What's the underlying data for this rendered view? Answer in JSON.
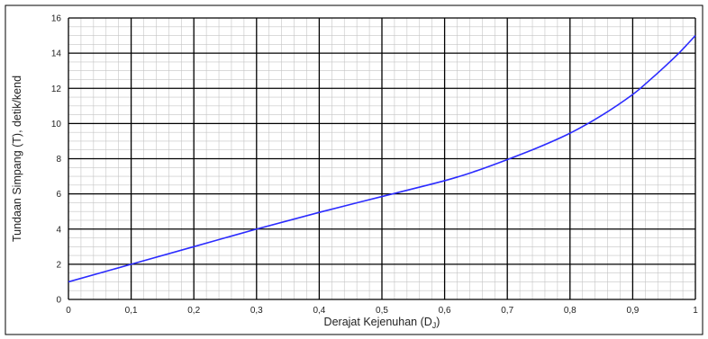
{
  "chart_data": {
    "type": "line",
    "title": "",
    "xlabel": "Derajat Kejenuhan (D",
    "xlabel_subscript": "J",
    "xlabel_suffix": ")",
    "ylabel": "Tundaan Simpang (T), detik/kend",
    "xlim": [
      0,
      1
    ],
    "ylim": [
      0,
      16
    ],
    "x_ticks": [
      "0",
      "0,1",
      "0,2",
      "0,3",
      "0,4",
      "0,5",
      "0,6",
      "0,7",
      "0,8",
      "0,9",
      "1"
    ],
    "y_ticks": [
      "0",
      "2",
      "4",
      "6",
      "8",
      "10",
      "12",
      "14",
      "16"
    ],
    "grid": true,
    "legend": "none",
    "series": [
      {
        "color": "#2b2bff",
        "x": [
          0,
          0.1,
          0.2,
          0.3,
          0.4,
          0.5,
          0.6,
          0.65,
          0.7,
          0.75,
          0.8,
          0.85,
          0.9,
          0.925,
          0.95,
          0.975,
          1.0
        ],
        "y": [
          1.0,
          2.0,
          3.0,
          4.0,
          4.95,
          5.85,
          6.75,
          7.3,
          7.95,
          8.65,
          9.45,
          10.45,
          11.65,
          12.4,
          13.2,
          14.05,
          15.0
        ]
      }
    ]
  }
}
